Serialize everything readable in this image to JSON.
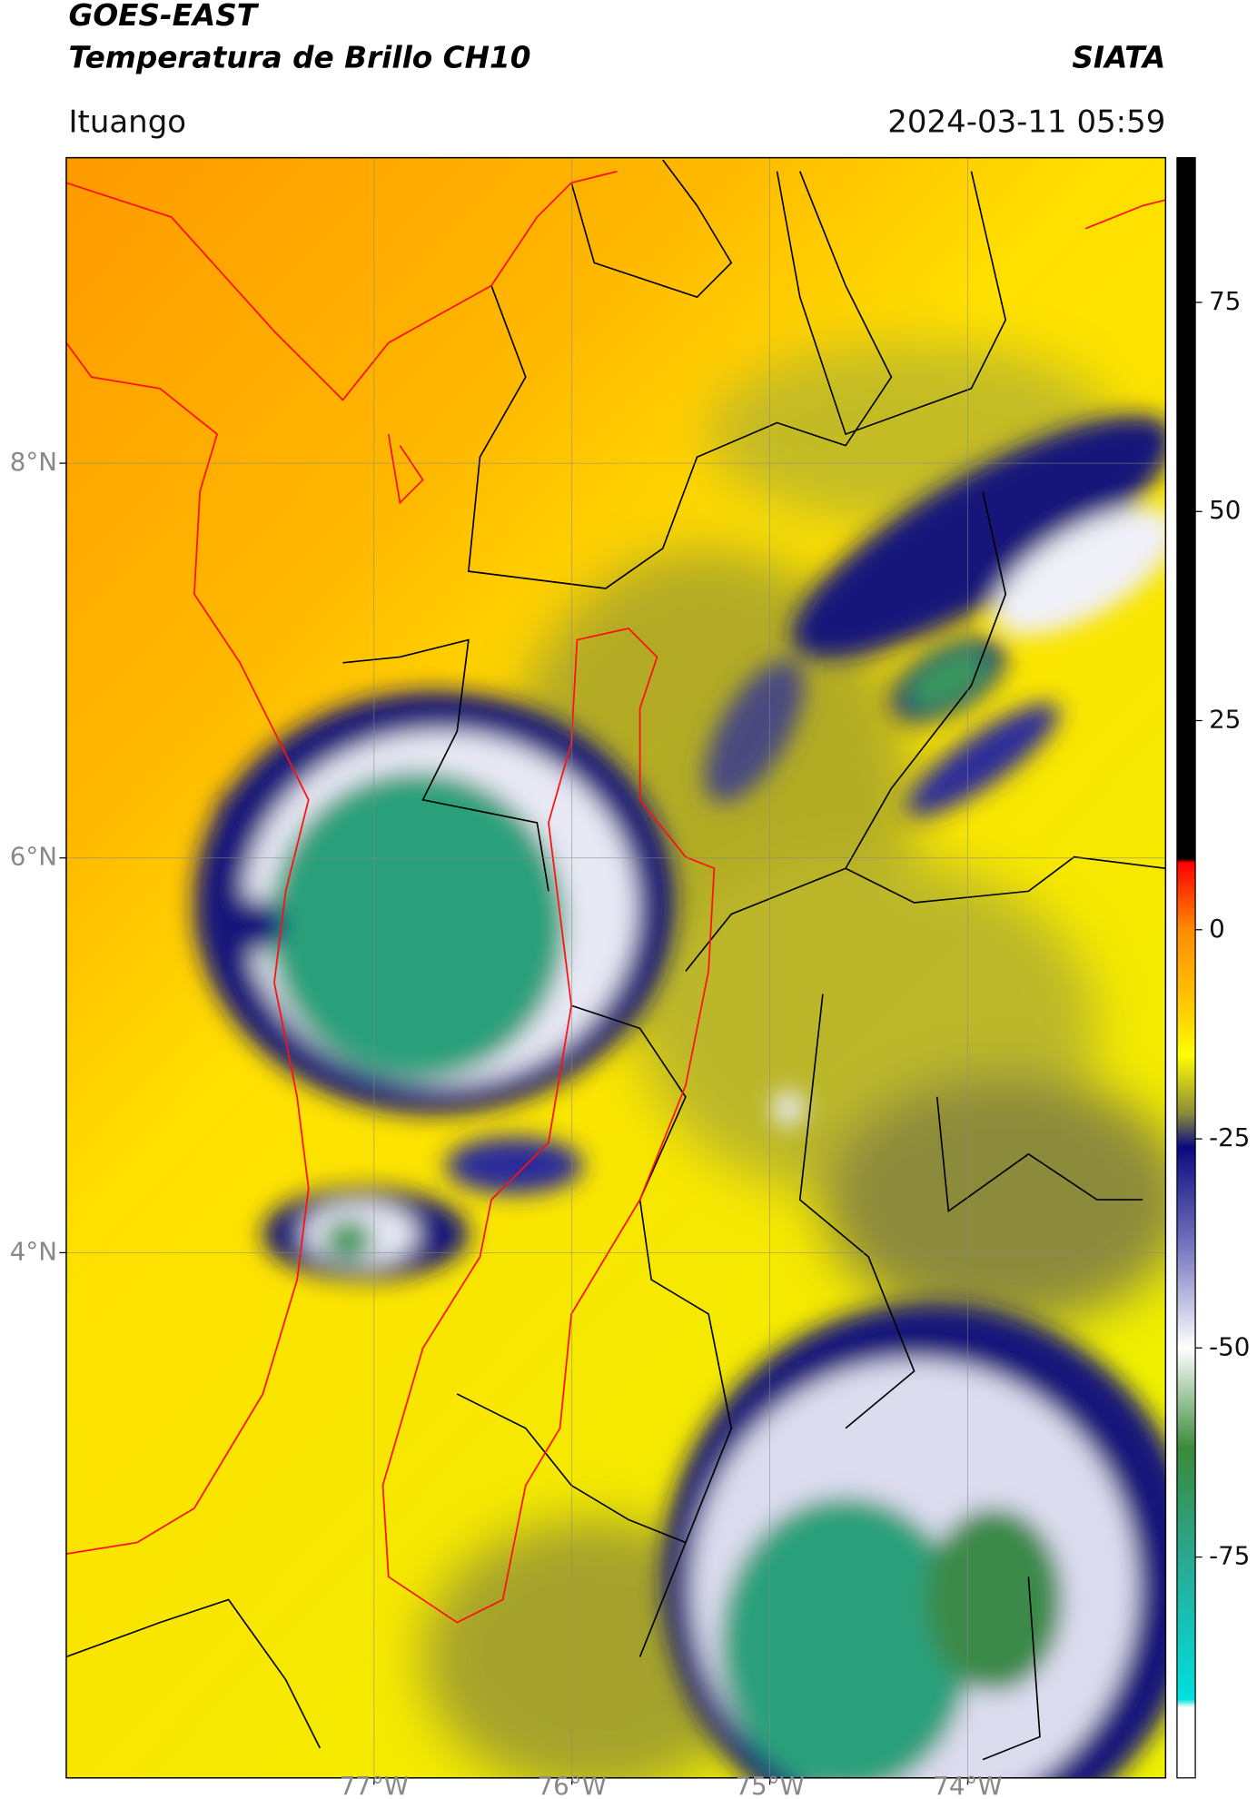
{
  "header": {
    "title": "GOES-EAST",
    "subtitle": "Temperatura de Brillo CH10",
    "source": "SIATA",
    "location": "Ituango",
    "timestamp": "2024-03-11 05:59"
  },
  "map": {
    "lonlim": [
      -78.555,
      -73.0
    ],
    "latlim": [
      1.339,
      9.548
    ],
    "lonticks": [
      {
        "value": -77,
        "label": "77°W"
      },
      {
        "value": -76,
        "label": "76°W"
      },
      {
        "value": -75,
        "label": "75°W"
      },
      {
        "value": -74,
        "label": "74°W"
      }
    ],
    "latticks": [
      {
        "value": 8,
        "label": "8°N"
      },
      {
        "value": 6,
        "label": "6°N"
      },
      {
        "value": 4,
        "label": "4°N"
      }
    ],
    "grid": true
  },
  "colorbar": {
    "lim": [
      -101.4,
      92.3
    ],
    "ticks": [
      75,
      50,
      25,
      0,
      -25,
      -50,
      -75
    ],
    "colormap": [
      {
        "value": 92.3,
        "color": "#000000"
      },
      {
        "value": 8.5,
        "color": "#000000"
      },
      {
        "value": 8,
        "color": "#ff0000"
      },
      {
        "value": 0,
        "color": "#ff8c00"
      },
      {
        "value": -10,
        "color": "#ffd000"
      },
      {
        "value": -15,
        "color": "#ffff00"
      },
      {
        "value": -22,
        "color": "#8a8a3a"
      },
      {
        "value": -26,
        "color": "#0a0a80"
      },
      {
        "value": -38,
        "color": "#7777c0"
      },
      {
        "value": -50,
        "color": "#ffffff"
      },
      {
        "value": -62,
        "color": "#3a8a3a"
      },
      {
        "value": -75,
        "color": "#2aa890"
      },
      {
        "value": -92,
        "color": "#00e0e0"
      },
      {
        "value": -93,
        "color": "#ffffff"
      },
      {
        "value": -101.4,
        "color": "#ffffff"
      }
    ]
  }
}
